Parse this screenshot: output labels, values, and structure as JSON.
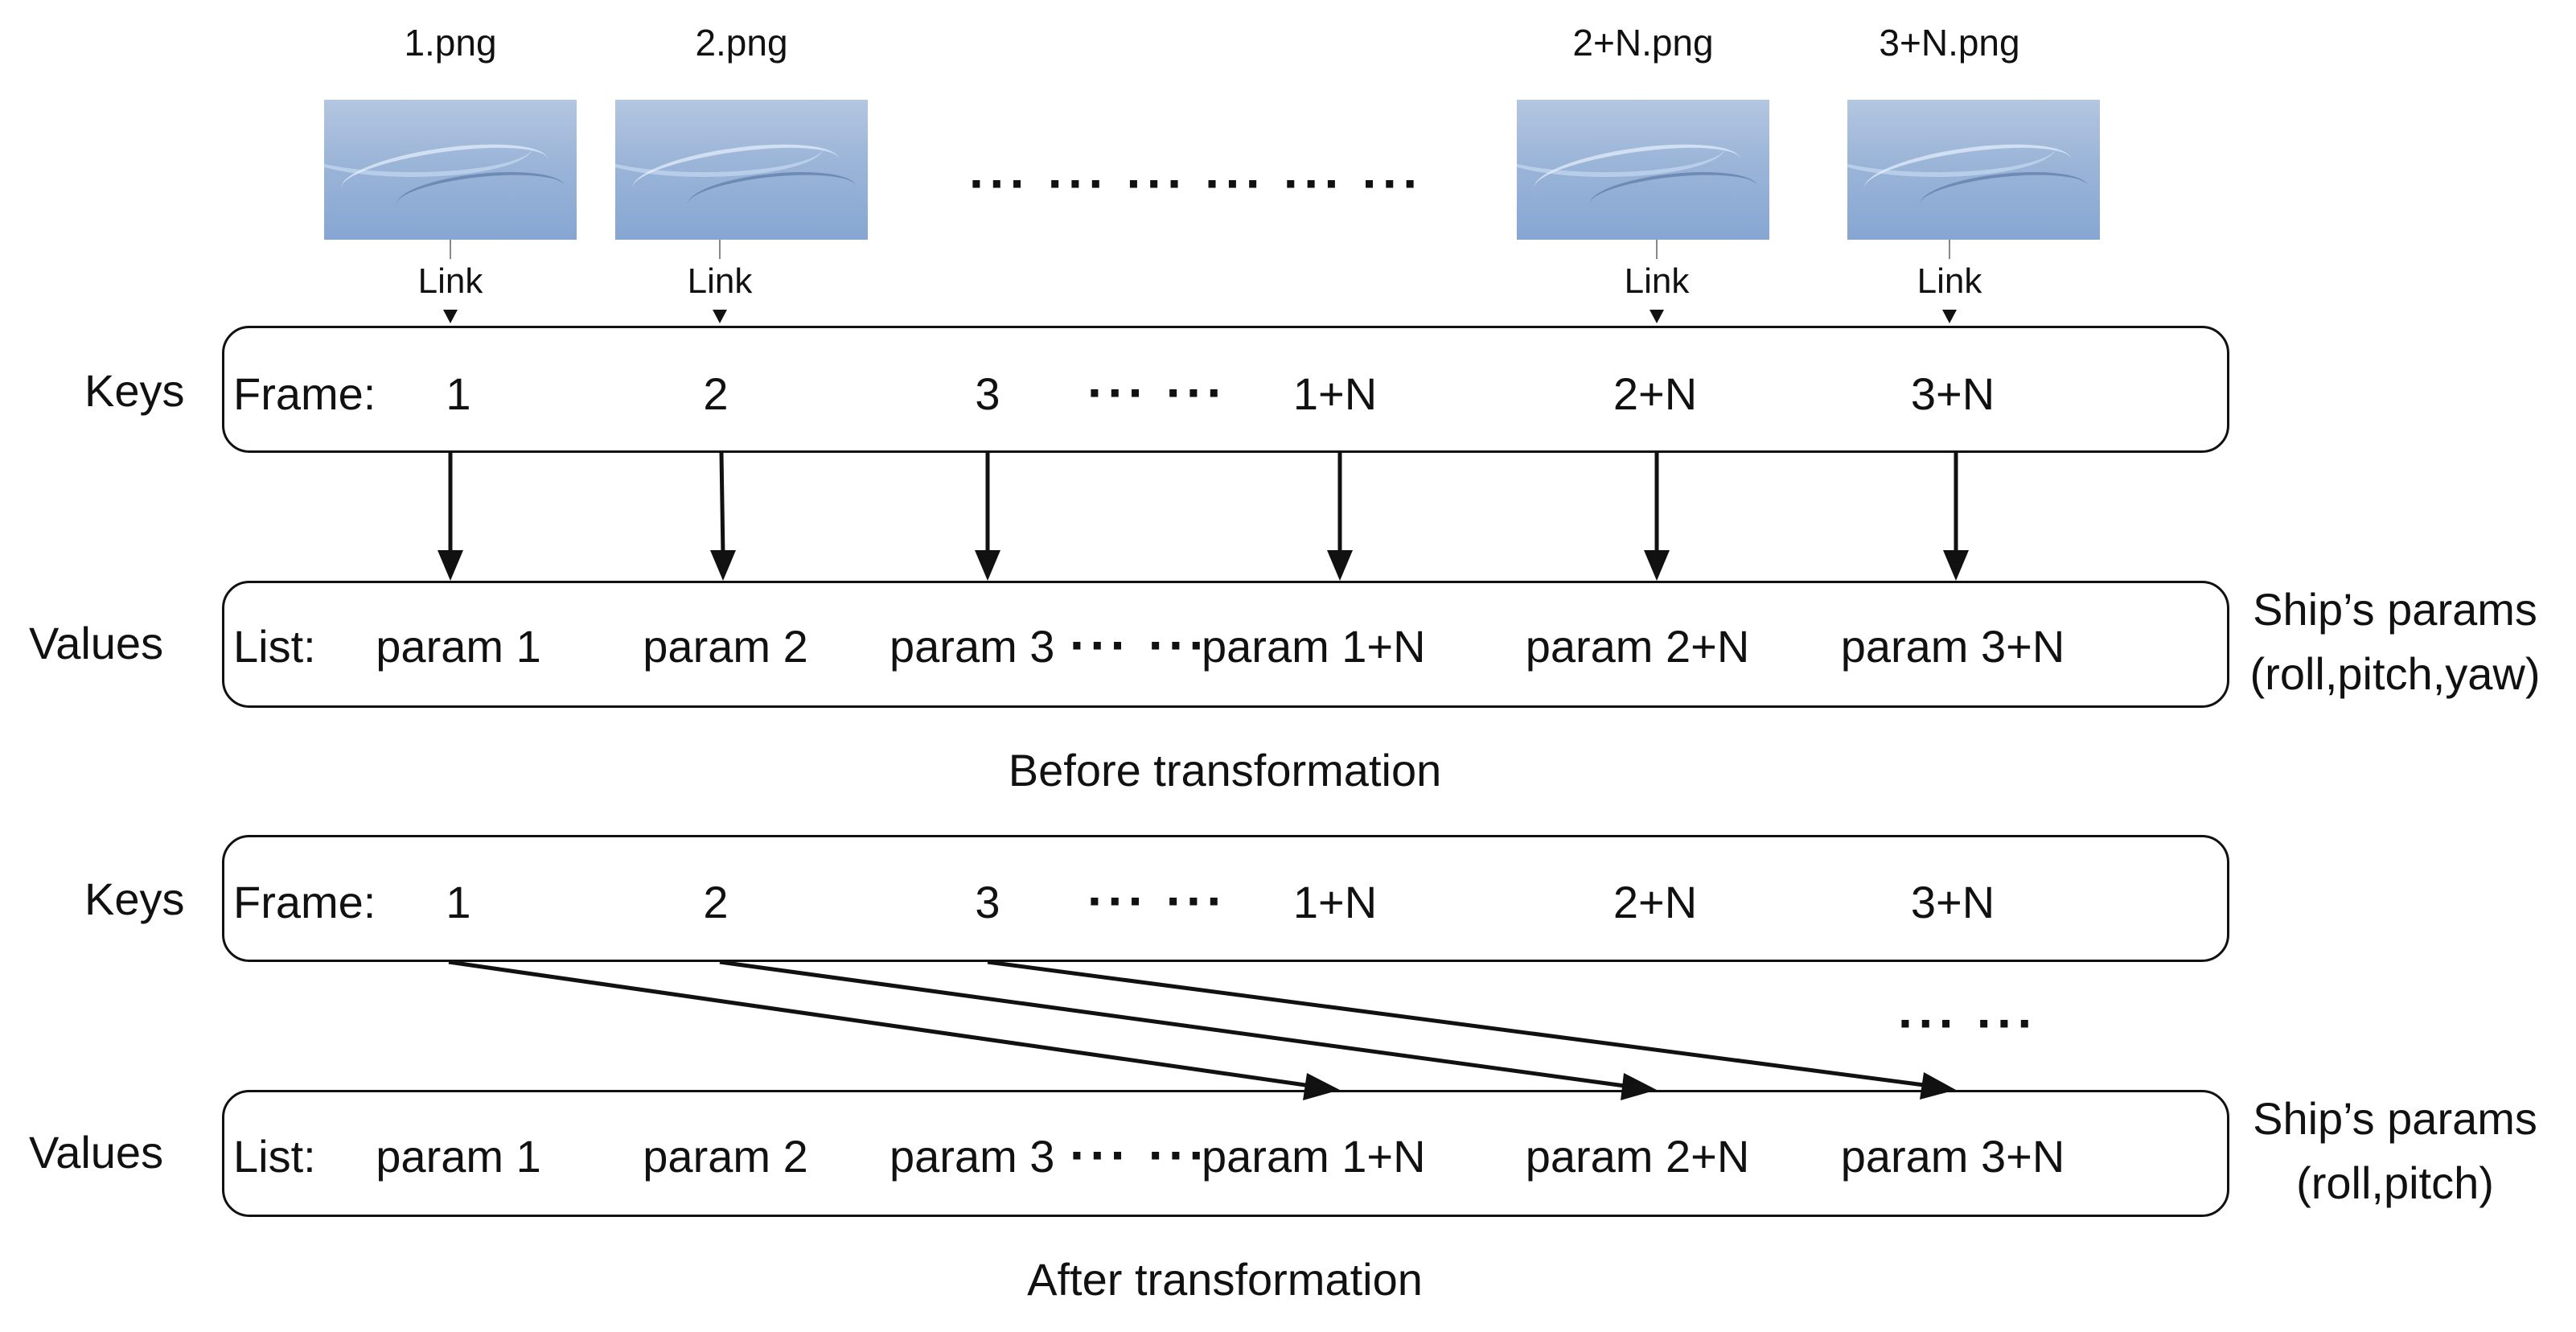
{
  "images": [
    {
      "filename": "1.png",
      "link": "Link"
    },
    {
      "filename": "2.png",
      "link": "Link"
    },
    {
      "filename": "2+N.png",
      "link": "Link"
    },
    {
      "filename": "3+N.png",
      "link": "Link"
    }
  ],
  "image_ellipsis": "··· ··· ··· ··· ··· ···",
  "before": {
    "keys_label": "Keys",
    "values_label": "Values",
    "frame_prefix": "Frame:",
    "frames": [
      "1",
      "2",
      "3",
      "1+N",
      "2+N",
      "3+N"
    ],
    "frame_ellipsis": "··· ···",
    "list_prefix": "List:",
    "params": [
      "param 1",
      "param 2",
      "param 3",
      "param 1+N",
      "param 2+N",
      "param 3+N"
    ],
    "param_ellipsis": "··· ···",
    "ship_line1": "Ship’s params",
    "ship_line2": "(roll,pitch,yaw)",
    "caption": "Before transformation"
  },
  "after": {
    "keys_label": "Keys",
    "values_label": "Values",
    "frame_prefix": "Frame:",
    "frames": [
      "1",
      "2",
      "3",
      "1+N",
      "2+N",
      "3+N"
    ],
    "frame_ellipsis": "··· ···",
    "list_prefix": "List:",
    "params": [
      "param 1",
      "param 2",
      "param 3",
      "param 1+N",
      "param 2+N",
      "param 3+N"
    ],
    "param_ellipsis": "··· ···",
    "arrow_ellipsis": "··· ···",
    "ship_line1": "Ship’s params",
    "ship_line2": "(roll,pitch)",
    "caption": "After transformation"
  }
}
